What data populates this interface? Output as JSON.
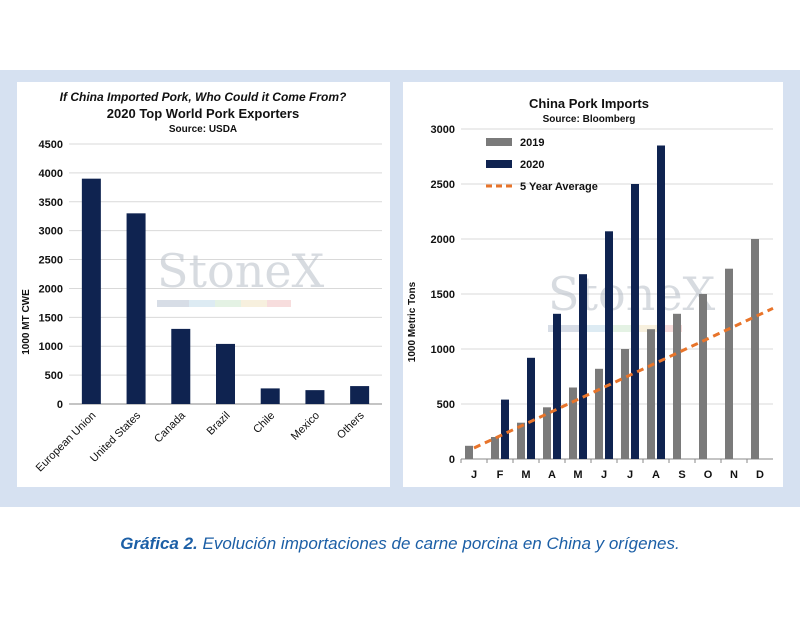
{
  "colors": {
    "frame": "#d6e1f1",
    "navy": "#0f2350",
    "gray": "#7a7a7a",
    "orange": "#e8742a",
    "caption": "#1c5fa6"
  },
  "watermark": "StoneX",
  "caption": {
    "label": "Gráfica 2.",
    "text": "Evolución importaciones de carne porcina en China y orígenes."
  },
  "chart_data": [
    {
      "type": "bar",
      "title_italic": "If China Imported Pork, Who Could it Come From?",
      "title": "2020 Top World Pork Exporters",
      "source": "Source: USDA",
      "ylabel": "1000 MT CWE",
      "ylim": [
        0,
        4500
      ],
      "yticks": [
        0,
        500,
        1000,
        1500,
        2000,
        2500,
        3000,
        3500,
        4000,
        4500
      ],
      "grid": true,
      "categories": [
        "European Union",
        "United States",
        "Canada",
        "Brazil",
        "Chile",
        "Mexico",
        "Others"
      ],
      "values": [
        3900,
        3300,
        1300,
        1040,
        270,
        240,
        310
      ]
    },
    {
      "type": "bar",
      "title": "China Pork Imports",
      "source": "Source: Bloomberg",
      "ylabel": "1000 Metric Tons",
      "ylim": [
        0,
        3000
      ],
      "yticks": [
        0,
        500,
        1000,
        1500,
        2000,
        2500,
        3000
      ],
      "grid": true,
      "legend_position": "top-left",
      "categories": [
        "J",
        "F",
        "M",
        "A",
        "M",
        "J",
        "J",
        "A",
        "S",
        "O",
        "N",
        "D"
      ],
      "series": [
        {
          "name": "2019",
          "values": [
            120,
            200,
            330,
            470,
            650,
            820,
            1000,
            1180,
            1320,
            1500,
            1730,
            2000
          ]
        },
        {
          "name": "2020",
          "values": [
            null,
            540,
            920,
            1320,
            1680,
            2070,
            2500,
            2850,
            null,
            null,
            null,
            null
          ]
        }
      ],
      "trend": {
        "name": "5 Year Average",
        "style": "dashed",
        "start": 100,
        "end": 1370
      }
    }
  ]
}
